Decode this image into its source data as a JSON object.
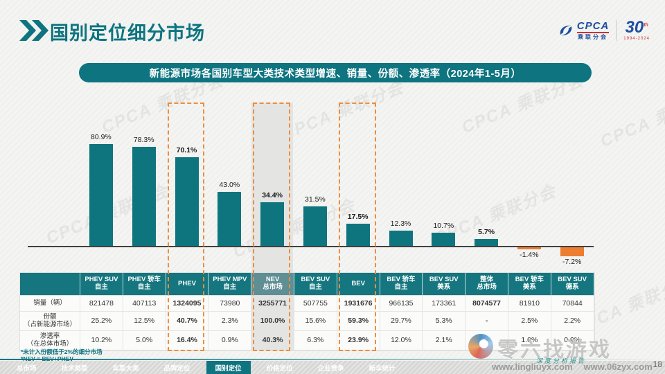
{
  "page": {
    "number": "18"
  },
  "header": {
    "title": "国别定位细分市场",
    "logo": {
      "cpca": "CPCA",
      "cpca_sub": "乘联分会",
      "anniversary": "30",
      "anniversary_sup": "th",
      "anniversary_years": "1994-2024"
    }
  },
  "banner": {
    "text": "新能源市场各国别车型大类技术类型增速、销量、份额、渗透率（2024年1-5月）"
  },
  "chart_data": {
    "type": "bar",
    "title": "新能源市场各国别车型大类技术类型增速、销量、份额、渗透率（2024年1-5月）",
    "categories": [
      "PHEV SUV 自主",
      "PHEV 轿车 自主",
      "PHEV",
      "PHEV MPV 自主",
      "NEV 总市场",
      "BEV SUV 自主",
      "BEV",
      "BEV 轿车 自主",
      "BEV SUV 美系",
      "整体 总市场",
      "BEV 轿车 美系",
      "BEV SUV 德系"
    ],
    "values": [
      80.9,
      78.3,
      70.1,
      43.0,
      34.4,
      31.5,
      17.5,
      12.3,
      10.7,
      5.7,
      -1.4,
      -7.2
    ],
    "labels": [
      "80.9%",
      "78.3%",
      "70.1%",
      "43.0%",
      "34.4%",
      "31.5%",
      "17.5%",
      "12.3%",
      "10.7%",
      "5.7%",
      "-1.4%",
      "-7.2%"
    ],
    "bold_indices": [
      2,
      4,
      6,
      9
    ],
    "dashed_highlight_indices": [
      2,
      4,
      6
    ],
    "shaded_index": 4,
    "bar_color": "#0e757e",
    "negative_bar_color": "#ed7d31",
    "xlabel": "",
    "ylabel": "",
    "ylim": [
      -10,
      90
    ],
    "grid": false,
    "legend": false
  },
  "table": {
    "col_headers": [
      "PHEV SUV\n自主",
      "PHEV 轿车\n自主",
      "PHEV",
      "PHEV MPV\n自主",
      "NEV\n总市场",
      "BEV SUV\n自主",
      "BEV",
      "BEV 轿车\n自主",
      "BEV SUV\n美系",
      "整体\n总市场",
      "BEV 轿车\n美系",
      "BEV SUV\n德系"
    ],
    "rows": [
      {
        "label": "销量（辆）",
        "values": [
          "821478",
          "407113",
          "1324095",
          "73980",
          "3255771",
          "507755",
          "1931676",
          "966135",
          "173361",
          "8074577",
          "81910",
          "70844"
        ]
      },
      {
        "label": "份额\n（占新能源市场）",
        "values": [
          "25.2%",
          "12.5%",
          "40.7%",
          "2.3%",
          "100.0%",
          "15.6%",
          "59.3%",
          "29.7%",
          "5.3%",
          "-",
          "2.5%",
          "2.2%"
        ]
      },
      {
        "label": "渗透率\n（在总体市场）",
        "values": [
          "10.2%",
          "5.0%",
          "16.4%",
          "0.9%",
          "40.3%",
          "6.3%",
          "23.9%",
          "12.0%",
          "2.1%",
          "-",
          "1.0%",
          "0.9%"
        ]
      }
    ]
  },
  "footnotes": {
    "line1": "*未计入份额低于2%的细分市场",
    "line2": "*NEV = BEV+PHEV"
  },
  "bottom_nav": {
    "items": [
      "总市场",
      "技术类型",
      "车型大类",
      "品牌定位",
      "国别定位",
      "价格定位",
      "企业竞争",
      "新车统计"
    ],
    "active_index": 4
  },
  "watermark": {
    "background_text": "CPCA 乘联分会",
    "brand": "零六找游戏",
    "tagline": "深度分析报告",
    "url_left": "www.lingliuyx.com",
    "url_right": "www.06zyx.com"
  },
  "colors": {
    "teal": "#0d7480",
    "orange": "#ed7d31",
    "table_header_bg": "#15767f",
    "highlight_border": "#ee8d3c",
    "shade": "#e4e4e3"
  }
}
